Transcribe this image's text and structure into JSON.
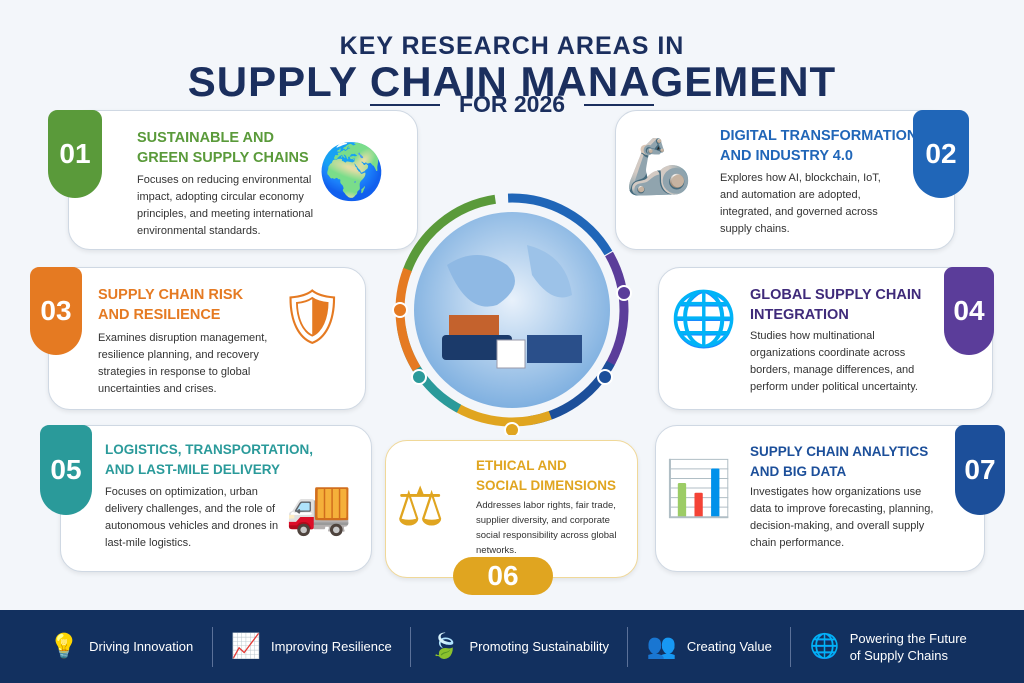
{
  "title": {
    "line1": "KEY RESEARCH AREAS IN",
    "line2": "SUPPLY CHAIN MANAGEMENT",
    "line3": "FOR 2026"
  },
  "cards": [
    {
      "num": "01",
      "title1": "SUSTAINABLE AND",
      "title2": "GREEN SUPPLY CHAINS",
      "desc": "Focuses on reducing environmental impact, adopting circular economy principles, and meeting international environmental standards.",
      "color": "#5a9a3a",
      "icon": "globe-leaf-icon"
    },
    {
      "num": "02",
      "title1": "DIGITAL TRANSFORMATION",
      "title2": "AND INDUSTRY 4.0",
      "desc": "Explores how AI, blockchain, IoT, and automation are adopted, integrated, and governed across supply chains.",
      "color": "#2066b8",
      "icon": "robot-arm-icon"
    },
    {
      "num": "03",
      "title1": "SUPPLY CHAIN RISK",
      "title2": "AND RESILIENCE",
      "desc": "Examines disruption management, resilience planning, and recovery strategies in response to global uncertainties and crises.",
      "color": "#e57a22",
      "icon": "shield-warning-icon"
    },
    {
      "num": "04",
      "title1": "GLOBAL SUPPLY CHAIN",
      "title2": "INTEGRATION",
      "desc": "Studies how multinational organizations coordinate across borders, manage differences, and perform under political uncertainty.",
      "color": "#5b3d9a",
      "icon": "globe-pins-icon"
    },
    {
      "num": "05",
      "title1": "LOGISTICS, TRANSPORTATION,",
      "title2": "AND LAST-MILE DELIVERY",
      "desc": "Focuses on optimization, urban delivery challenges, and the role of autonomous vehicles and drones in last-mile logistics.",
      "color": "#2a9a9a",
      "icon": "drone-truck-icon"
    },
    {
      "num": "06",
      "title1": "ETHICAL AND",
      "title2": "SOCIAL DIMENSIONS",
      "desc": "Addresses labor rights, fair trade, supplier diversity, and corporate social responsibility across global networks.",
      "color": "#e0a520",
      "icon": "people-scales-icon"
    },
    {
      "num": "07",
      "title1": "SUPPLY CHAIN ANALYTICS",
      "title2": "AND BIG DATA",
      "desc": "Investigates how organizations use data to improve forecasting, planning, decision-making, and overall supply chain performance.",
      "color": "#1c4f9a",
      "icon": "chart-magnifier-icon"
    }
  ],
  "footer": [
    {
      "label": "Driving Innovation",
      "icon": "lightbulb-icon"
    },
    {
      "label": "Improving Resilience",
      "icon": "growth-chart-icon"
    },
    {
      "label": "Promoting Sustainability",
      "icon": "leaf-icon"
    },
    {
      "label": "Creating Value",
      "icon": "people-icon"
    },
    {
      "label": "Powering the Future of Supply Chains",
      "icon": "globe-icon"
    }
  ]
}
